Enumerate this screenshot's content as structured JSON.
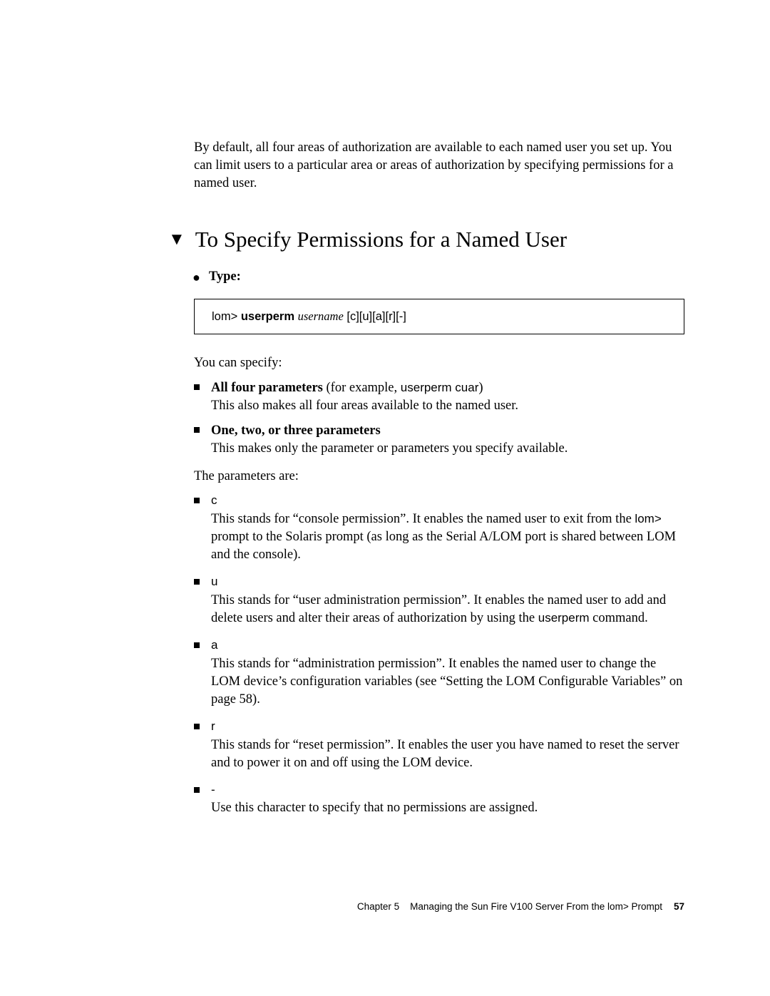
{
  "intro": "By default, all four areas of authorization are available to each named user you set up. You can limit users to a particular area or areas of authorization by specifying permissions for a named user.",
  "heading": "To Specify Permissions for a Named User",
  "step_label": "Type:",
  "code": {
    "prompt": "lom>",
    "cmd_bold": "userperm",
    "arg_ital": "username",
    "suffix": "[c][u][a][r][-]"
  },
  "you_can_specify": "You can specify:",
  "spec_items": {
    "a_bold": "All four parameters",
    "a_rest1": " (for example, ",
    "a_mono": "userperm cuar",
    "a_rest2": ")",
    "a_line2": "This also makes all four areas available to the named user.",
    "b_bold": "One, two, or three parameters",
    "b_line2": "This makes only the parameter or parameters you specify available."
  },
  "params_intro": "The parameters are:",
  "params": {
    "c": {
      "code": "c",
      "t1": "This stands for “console permission”. It enables the named user to exit from the ",
      "mono": "lom>",
      "t2": " prompt to the Solaris prompt (as long as the Serial A/LOM port is shared between LOM and the console)."
    },
    "u": {
      "code": "u",
      "t1": "This stands for “user administration permission”. It enables the named user to add and delete users and alter their areas of authorization by using the ",
      "mono": "userperm",
      "t2": " command."
    },
    "a": {
      "code": "a",
      "text": "This stands for “administration permission”. It enables the named user to change the LOM device’s configuration variables (see “Setting the LOM Configurable Variables” on page 58)."
    },
    "r": {
      "code": "r",
      "text": "This stands for “reset permission”. It enables the user you have named to reset the server and to power it on and off using the LOM device."
    },
    "dash": {
      "code": "-",
      "text": "Use this character to specify that no permissions are assigned."
    }
  },
  "footer": {
    "chapter": "Chapter 5",
    "title": "Managing the Sun Fire V100 Server From the lom> Prompt",
    "page": "57"
  }
}
